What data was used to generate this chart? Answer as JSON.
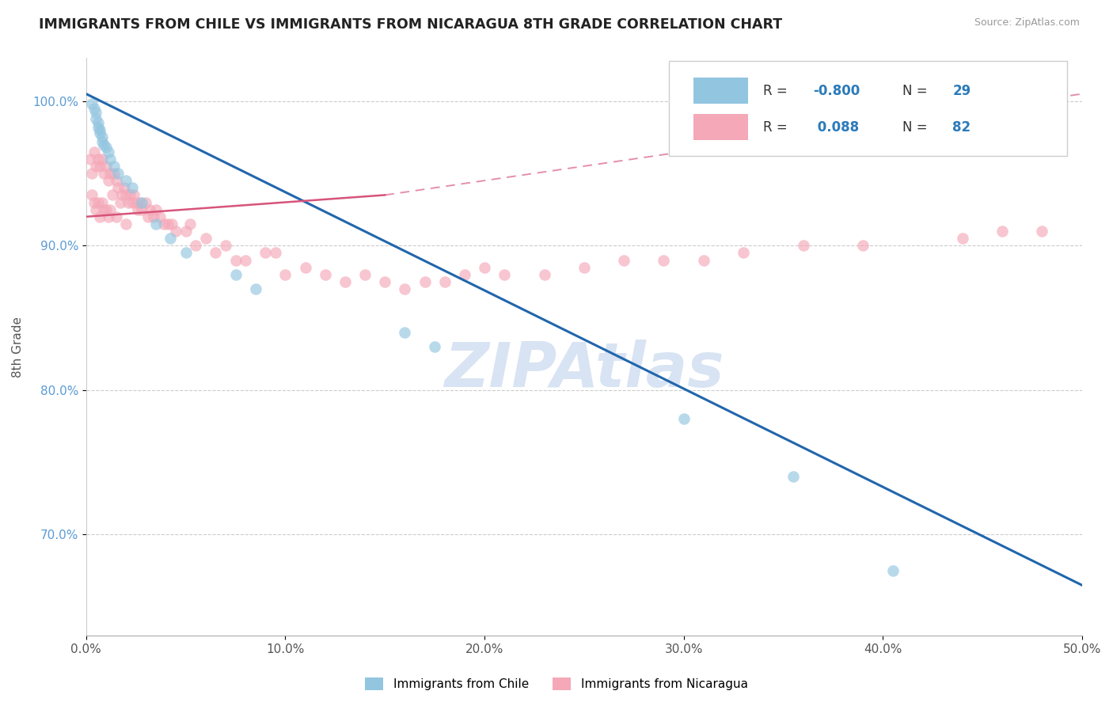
{
  "title": "IMMIGRANTS FROM CHILE VS IMMIGRANTS FROM NICARAGUA 8TH GRADE CORRELATION CHART",
  "source": "Source: ZipAtlas.com",
  "ylabel": "8th Grade",
  "legend_label1": "Immigrants from Chile",
  "legend_label2": "Immigrants from Nicaragua",
  "r1": -0.8,
  "n1": 29,
  "r2": 0.088,
  "n2": 82,
  "xlim": [
    0.0,
    50.0
  ],
  "ylim": [
    63.0,
    103.0
  ],
  "xticks": [
    0.0,
    10.0,
    20.0,
    30.0,
    40.0,
    50.0
  ],
  "yticks": [
    70.0,
    80.0,
    90.0,
    100.0
  ],
  "ytick_labels": [
    "70.0%",
    "80.0%",
    "90.0%",
    "100.0%"
  ],
  "color_chile": "#92c5e0",
  "color_nicaragua": "#f4a8b8",
  "line_color_chile": "#2166ac",
  "line_color_nicaragua": "#d6547a",
  "watermark": "ZIPAtlas",
  "watermark_color": "#c8d8ee",
  "background_color": "#ffffff",
  "chile_x": [
    0.3,
    0.4,
    0.5,
    0.5,
    0.6,
    0.6,
    0.7,
    0.7,
    0.8,
    0.8,
    0.9,
    1.0,
    1.1,
    1.2,
    1.4,
    1.6,
    2.0,
    2.3,
    2.8,
    3.5,
    4.2,
    5.0,
    7.5,
    8.5,
    16.0,
    17.5,
    30.0,
    35.5,
    40.5
  ],
  "chile_y": [
    99.8,
    99.5,
    99.2,
    98.8,
    98.5,
    98.2,
    98.0,
    97.8,
    97.5,
    97.2,
    97.0,
    96.8,
    96.5,
    96.0,
    95.5,
    95.0,
    94.5,
    94.0,
    93.0,
    91.5,
    90.5,
    89.5,
    88.0,
    87.0,
    84.0,
    83.0,
    78.0,
    74.0,
    67.5
  ],
  "nicaragua_x": [
    0.2,
    0.3,
    0.3,
    0.4,
    0.4,
    0.5,
    0.5,
    0.6,
    0.6,
    0.7,
    0.7,
    0.8,
    0.8,
    0.9,
    0.9,
    1.0,
    1.0,
    1.1,
    1.1,
    1.2,
    1.2,
    1.3,
    1.4,
    1.5,
    1.5,
    1.6,
    1.7,
    1.8,
    1.9,
    2.0,
    2.0,
    2.1,
    2.2,
    2.3,
    2.4,
    2.5,
    2.6,
    2.7,
    2.8,
    3.0,
    3.1,
    3.2,
    3.4,
    3.5,
    3.7,
    3.9,
    4.1,
    4.3,
    4.5,
    5.0,
    5.2,
    5.5,
    6.0,
    6.5,
    7.0,
    7.5,
    8.0,
    9.0,
    9.5,
    10.0,
    11.0,
    12.0,
    13.0,
    14.0,
    15.0,
    16.0,
    17.0,
    18.0,
    19.0,
    20.0,
    21.0,
    23.0,
    25.0,
    27.0,
    29.0,
    31.0,
    33.0,
    36.0,
    39.0,
    44.0,
    46.0,
    48.0
  ],
  "nicaragua_y": [
    96.0,
    95.0,
    93.5,
    96.5,
    93.0,
    95.5,
    92.5,
    96.0,
    93.0,
    95.5,
    92.0,
    96.0,
    93.0,
    95.0,
    92.5,
    95.5,
    92.5,
    94.5,
    92.0,
    95.0,
    92.5,
    93.5,
    95.0,
    94.5,
    92.0,
    94.0,
    93.0,
    93.5,
    94.0,
    93.5,
    91.5,
    93.0,
    93.5,
    93.0,
    93.5,
    93.0,
    92.5,
    93.0,
    92.5,
    93.0,
    92.0,
    92.5,
    92.0,
    92.5,
    92.0,
    91.5,
    91.5,
    91.5,
    91.0,
    91.0,
    91.5,
    90.0,
    90.5,
    89.5,
    90.0,
    89.0,
    89.0,
    89.5,
    89.5,
    88.0,
    88.5,
    88.0,
    87.5,
    88.0,
    87.5,
    87.0,
    87.5,
    87.5,
    88.0,
    88.5,
    88.0,
    88.0,
    88.5,
    89.0,
    89.0,
    89.0,
    89.5,
    90.0,
    90.0,
    90.5,
    91.0,
    91.0
  ],
  "chile_line_x0": 0.0,
  "chile_line_y0": 100.5,
  "chile_line_x1": 50.0,
  "chile_line_y1": 66.5,
  "nic_solid_x0": 0.0,
  "nic_solid_y0": 92.0,
  "nic_solid_x1": 15.0,
  "nic_solid_y1": 93.5,
  "nic_dash_x0": 15.0,
  "nic_dash_y0": 93.5,
  "nic_dash_x1": 50.0,
  "nic_dash_y1": 100.5
}
